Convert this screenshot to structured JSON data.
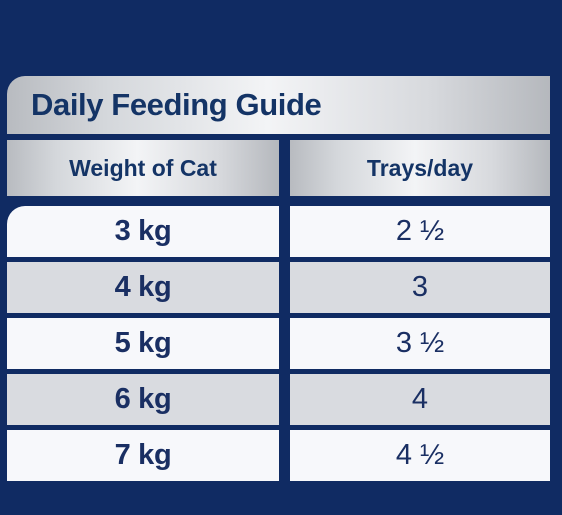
{
  "table": {
    "title": "Daily Feeding Guide",
    "headers": [
      "Weight of Cat",
      "Trays/day"
    ],
    "rows": [
      {
        "weight": "3 kg",
        "trays": "2 ½"
      },
      {
        "weight": "4 kg",
        "trays": "3"
      },
      {
        "weight": "5 kg",
        "trays": "3 ½"
      },
      {
        "weight": "6 kg",
        "trays": "4"
      },
      {
        "weight": "7 kg",
        "trays": "4 ½"
      }
    ]
  },
  "colors": {
    "background": "#102b63",
    "text": "#143466",
    "light_row": "#f7f8fb",
    "dark_row": "#d9dbe0"
  }
}
